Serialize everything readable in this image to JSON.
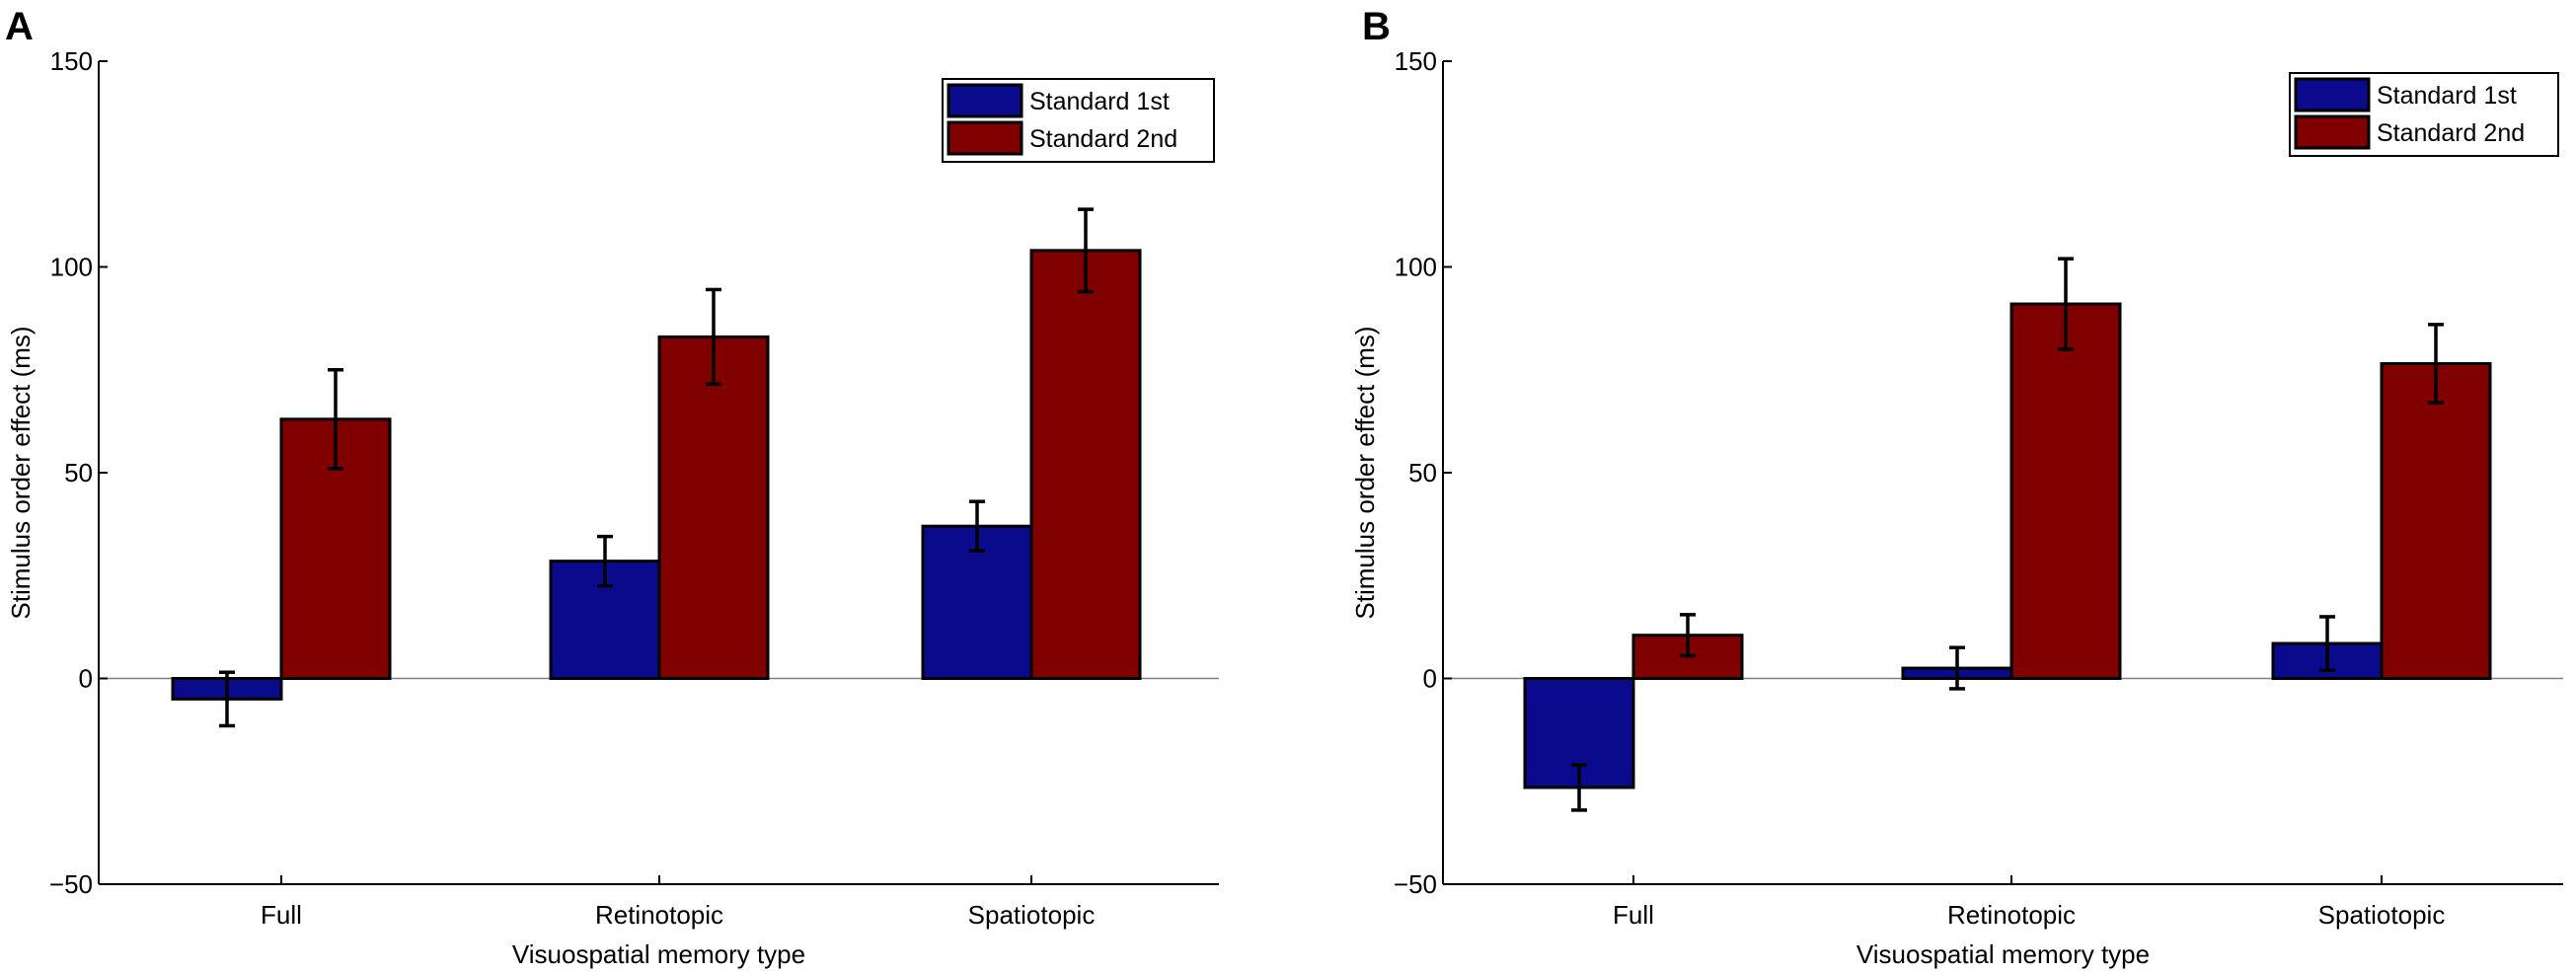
{
  "colors": {
    "standard_1st": "#0a0a8c",
    "standard_2nd": "#800000",
    "axis": "#000000",
    "zero_line": "#808080"
  },
  "chart_data": [
    {
      "panel": "A",
      "type": "bar",
      "title": "",
      "xlabel": "Visuospatial memory type",
      "ylabel": "Stimulus order effect (ms)",
      "categories": [
        "Full",
        "Retinotopic",
        "Spatiotopic"
      ],
      "ylim": [
        -50,
        150
      ],
      "yticks": [
        -50,
        0,
        50,
        100,
        150
      ],
      "ytick_labels": [
        "−50",
        "0",
        "50",
        "100",
        "150"
      ],
      "grid": false,
      "legend_position": "top-right",
      "series": [
        {
          "name": "Standard 1st",
          "values": [
            -5,
            28.5,
            37
          ],
          "err": [
            6.5,
            6,
            6
          ]
        },
        {
          "name": "Standard 2nd",
          "values": [
            63,
            83,
            104
          ],
          "err": [
            12,
            11.5,
            10
          ]
        }
      ]
    },
    {
      "panel": "B",
      "type": "bar",
      "title": "",
      "xlabel": "Visuospatial memory type",
      "ylabel": "Stimulus order effect (ms)",
      "categories": [
        "Full",
        "Retinotopic",
        "Spatiotopic"
      ],
      "ylim": [
        -50,
        150
      ],
      "yticks": [
        -50,
        0,
        50,
        100,
        150
      ],
      "ytick_labels": [
        "−50",
        "0",
        "50",
        "100",
        "150"
      ],
      "grid": false,
      "legend_position": "top-right",
      "series": [
        {
          "name": "Standard 1st",
          "values": [
            -26.5,
            2.5,
            8.5
          ],
          "err": [
            5.5,
            5,
            6.5
          ]
        },
        {
          "name": "Standard 2nd",
          "values": [
            10.5,
            91,
            76.5
          ],
          "err": [
            5,
            11,
            9.5
          ]
        }
      ]
    }
  ]
}
